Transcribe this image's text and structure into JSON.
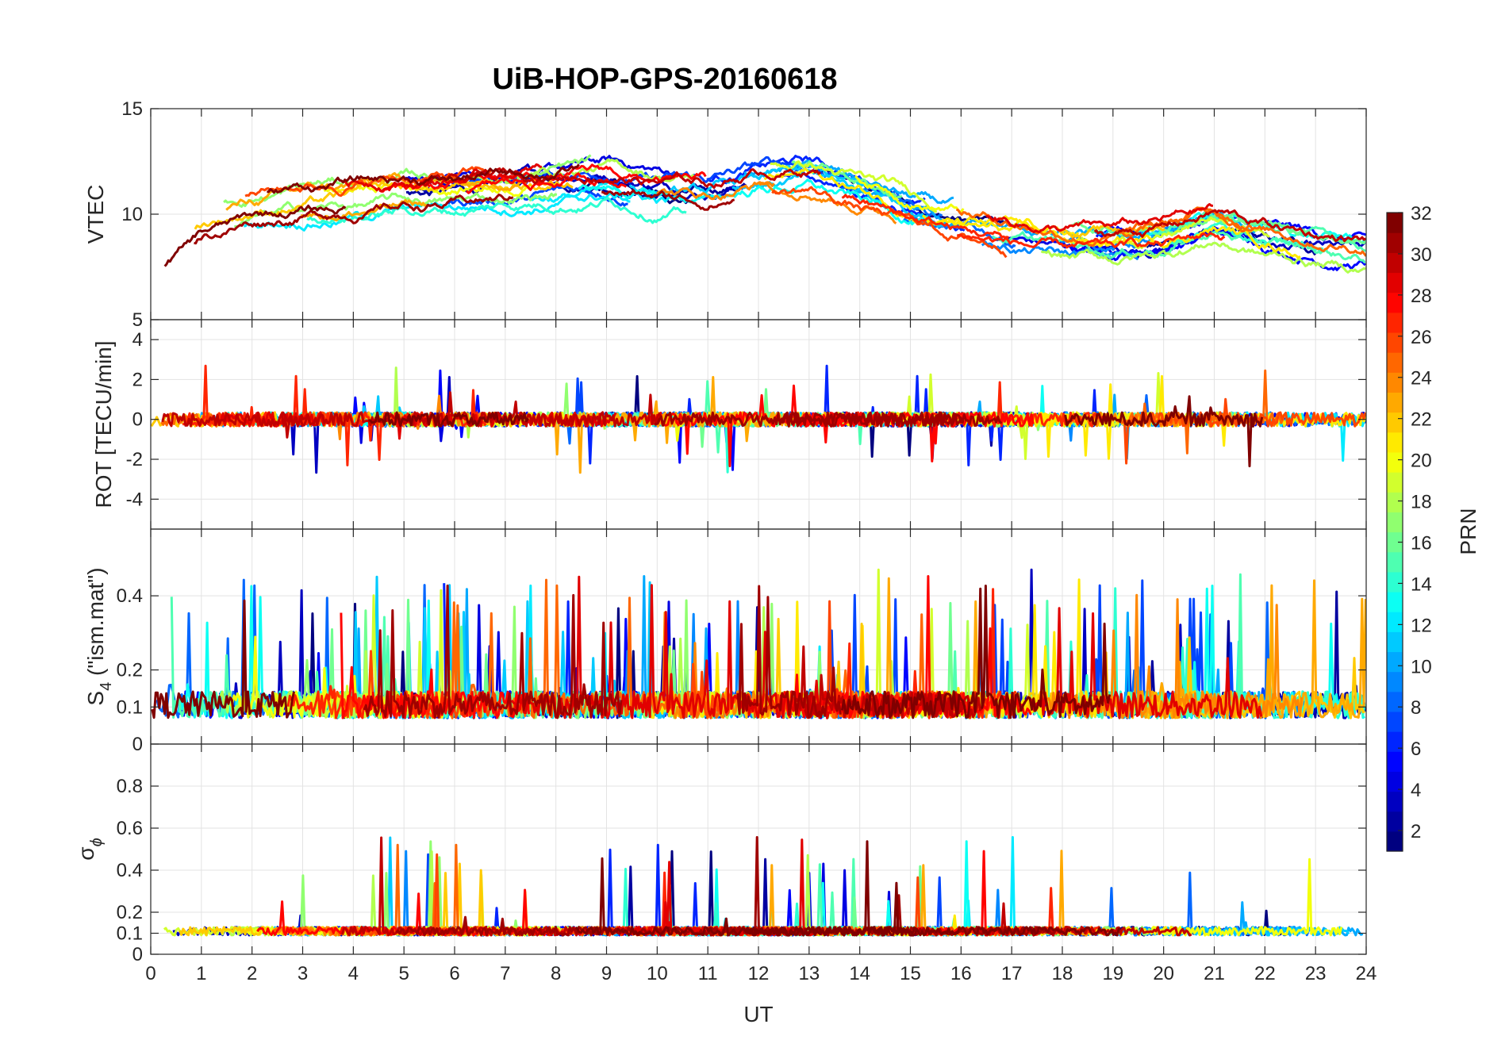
{
  "chart_data": {
    "type": "line",
    "title": "UiB-HOP-GPS-20160618",
    "xlabel": "UT",
    "xlim": [
      0,
      24
    ],
    "x_ticks": [
      "0",
      "1",
      "2",
      "3",
      "4",
      "5",
      "6",
      "7",
      "8",
      "9",
      "10",
      "11",
      "12",
      "13",
      "14",
      "15",
      "16",
      "17",
      "18",
      "19",
      "20",
      "21",
      "22",
      "23",
      "24"
    ],
    "colorbar": {
      "label": "PRN",
      "colormap": "jet",
      "range": [
        1,
        32
      ],
      "ticks": [
        "2",
        "4",
        "6",
        "8",
        "10",
        "12",
        "14",
        "16",
        "18",
        "20",
        "22",
        "24",
        "26",
        "28",
        "30",
        "32"
      ]
    },
    "series_note": "one line per satellite PRN (1–32), colored by PRN on the colorbar",
    "panels": [
      {
        "ylabel": "VTEC",
        "ylim": [
          5,
          15
        ],
        "y_ticks": [
          {
            "v": 5,
            "t": "5"
          },
          {
            "v": 10,
            "t": "10"
          },
          {
            "v": 15,
            "t": "15"
          }
        ],
        "envelope_x": [
          0,
          1,
          2,
          3,
          4,
          5,
          6,
          7,
          8,
          9,
          10,
          11,
          12,
          13,
          14,
          15,
          16,
          17,
          18,
          19,
          20,
          21,
          22,
          23,
          24
        ],
        "envelope_y": [
          7.5,
          9.5,
          10.2,
          10.6,
          10.8,
          11.0,
          11.0,
          11.2,
          11.4,
          11.6,
          11.2,
          11.0,
          11.6,
          11.8,
          11.0,
          10.2,
          9.6,
          9.2,
          8.8,
          8.6,
          8.9,
          9.6,
          8.9,
          8.5,
          8.2
        ],
        "spread": 1.6
      },
      {
        "ylabel": "ROT [TECU/min]",
        "ylim": [
          -5.5,
          5
        ],
        "y_ticks": [
          {
            "v": -4,
            "t": "-4"
          },
          {
            "v": -2,
            "t": "-2"
          },
          {
            "v": 0,
            "t": "0"
          },
          {
            "v": 2,
            "t": "2"
          },
          {
            "v": 4,
            "t": "4"
          }
        ],
        "envelope_x": [
          0,
          24
        ],
        "envelope_y": [
          0,
          0
        ],
        "spread": 0.7
      },
      {
        "ylabel": "S4 (\"ism.mat\")",
        "ylabel_main": "S",
        "ylabel_sub": "4",
        "ylabel_rest": " (\"ism.mat\")",
        "ylim": [
          0,
          0.58
        ],
        "y_ticks": [
          {
            "v": 0,
            "t": "0"
          },
          {
            "v": 0.1,
            "t": "0.1"
          },
          {
            "v": 0.2,
            "t": "0.2"
          },
          {
            "v": 0.4,
            "t": "0.4"
          }
        ],
        "envelope_x": [
          0,
          24
        ],
        "envelope_y": [
          0.1,
          0.1
        ],
        "spread": 0.12
      },
      {
        "ylabel": "σφ",
        "ylabel_main": "σ",
        "ylabel_sub": "ϕ",
        "ylim": [
          0,
          1
        ],
        "y_ticks": [
          {
            "v": 0,
            "t": "0"
          },
          {
            "v": 0.1,
            "t": "0.1"
          },
          {
            "v": 0.2,
            "t": "0.2"
          },
          {
            "v": 0.4,
            "t": "0.4"
          },
          {
            "v": 0.6,
            "t": "0.6"
          },
          {
            "v": 0.8,
            "t": "0.8"
          }
        ],
        "envelope_x": [
          0,
          24
        ],
        "envelope_y": [
          0.11,
          0.11
        ],
        "spread": 0.04
      }
    ]
  }
}
